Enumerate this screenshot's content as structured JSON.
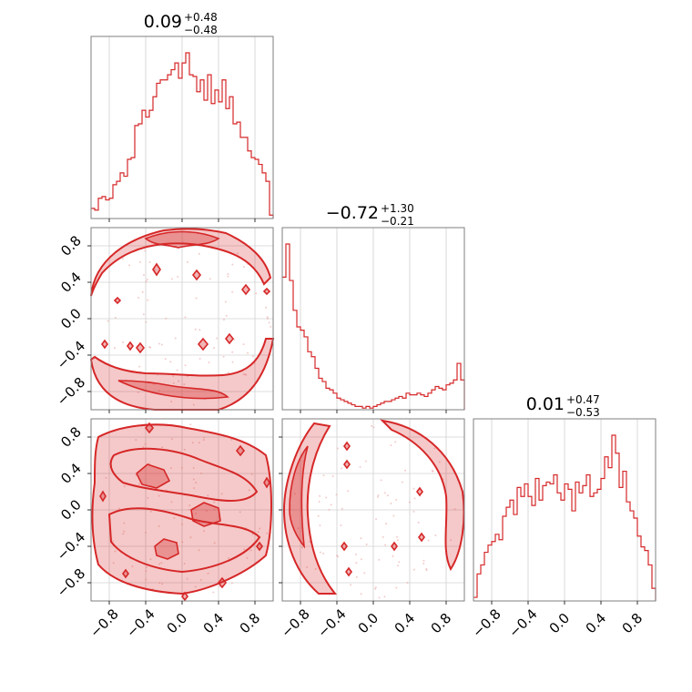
{
  "chart_data": {
    "type": "corner",
    "color": "#d62728",
    "axis_range": [
      -1,
      1
    ],
    "tick_values": [
      -0.8,
      -0.4,
      0.0,
      0.4,
      0.8
    ],
    "tick_labels": [
      "−0.8",
      "−0.4",
      "0.0",
      "0.4",
      "0.8"
    ],
    "titles": [
      {
        "value": "0.09",
        "plus": "+0.48",
        "minus": "−0.48"
      },
      {
        "value": "−0.72",
        "plus": "+1.30",
        "minus": "−0.21"
      },
      {
        "value": "0.01",
        "plus": "+0.47",
        "minus": "−0.53"
      }
    ],
    "histograms": [
      {
        "parameter": 1,
        "bin_edges_start": -1.0,
        "bin_width": 0.04,
        "counts": [
          0.06,
          0.05,
          0.12,
          0.13,
          0.11,
          0.12,
          0.2,
          0.22,
          0.27,
          0.25,
          0.35,
          0.36,
          0.55,
          0.56,
          0.64,
          0.6,
          0.64,
          0.72,
          0.8,
          0.82,
          0.82,
          0.85,
          0.88,
          0.92,
          0.83,
          0.92,
          0.98,
          0.85,
          0.84,
          0.75,
          0.82,
          0.7,
          0.85,
          0.68,
          0.76,
          0.69,
          0.82,
          0.65,
          0.72,
          0.56,
          0.57,
          0.48,
          0.48,
          0.4,
          0.36,
          0.35,
          0.32,
          0.27,
          0.22,
          0.02
        ]
      },
      {
        "parameter": 2,
        "bin_edges_start": -1.0,
        "bin_width": 0.04,
        "counts": [
          0.8,
          1.0,
          0.78,
          0.6,
          0.5,
          0.48,
          0.44,
          0.35,
          0.32,
          0.25,
          0.19,
          0.17,
          0.13,
          0.12,
          0.1,
          0.07,
          0.06,
          0.05,
          0.04,
          0.03,
          0.02,
          0.02,
          0.01,
          0.02,
          0.01,
          0.02,
          0.03,
          0.04,
          0.05,
          0.05,
          0.06,
          0.07,
          0.08,
          0.07,
          0.1,
          0.09,
          0.09,
          0.1,
          0.09,
          0.08,
          0.1,
          0.12,
          0.14,
          0.13,
          0.12,
          0.15,
          0.16,
          0.18,
          0.28,
          0.18
        ]
      },
      {
        "parameter": 3,
        "bin_edges_start": -1.0,
        "bin_width": 0.04,
        "counts": [
          0.02,
          0.15,
          0.2,
          0.27,
          0.31,
          0.33,
          0.37,
          0.34,
          0.47,
          0.52,
          0.56,
          0.48,
          0.63,
          0.58,
          0.65,
          0.58,
          0.53,
          0.68,
          0.56,
          0.64,
          0.66,
          0.65,
          0.7,
          0.6,
          0.56,
          0.65,
          0.62,
          0.5,
          0.66,
          0.6,
          0.64,
          0.7,
          0.58,
          0.6,
          0.62,
          0.68,
          0.8,
          0.74,
          0.92,
          0.82,
          0.63,
          0.72,
          0.55,
          0.5,
          0.46,
          0.36,
          0.3,
          0.28,
          0.2,
          0.07
        ]
      }
    ]
  }
}
